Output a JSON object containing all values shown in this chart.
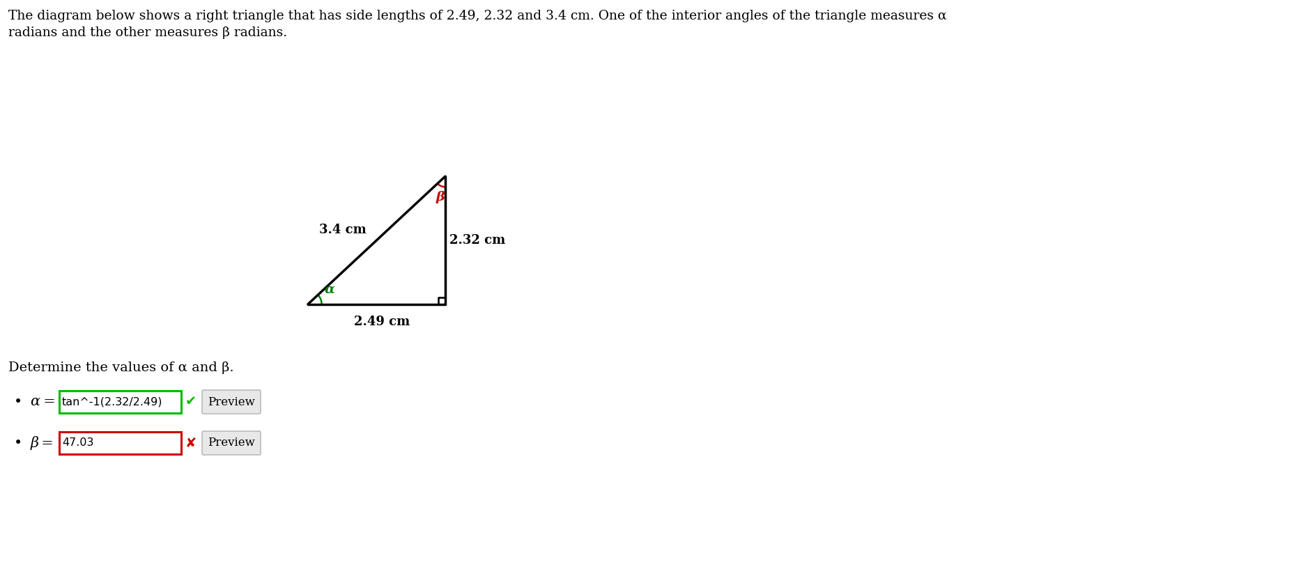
{
  "title_line1": "The diagram below shows a right triangle that has side lengths of 2.49, 2.32 and 3.4 cm. One of the interior angles of the triangle measures α",
  "title_line2": "radians and the other measures β radians.",
  "triangle": {
    "base_label": "2.49 cm",
    "right_label": "2.32 cm",
    "hyp_label": "3.4 cm",
    "alpha_label": "α",
    "beta_label": "β",
    "alpha_color": "#008000",
    "beta_color": "#cc0000",
    "line_color": "#000000",
    "line_width": 2.5
  },
  "determine_text": "Determine the values of α and β.",
  "alpha_answer": "tan^-1(2.32/2.49)",
  "alpha_box_color": "#00bb00",
  "alpha_check_color": "#00bb00",
  "beta_answer": "47.03",
  "beta_box_color": "#cc0000",
  "beta_x_color": "#cc0000",
  "bg_color": "#ffffff"
}
